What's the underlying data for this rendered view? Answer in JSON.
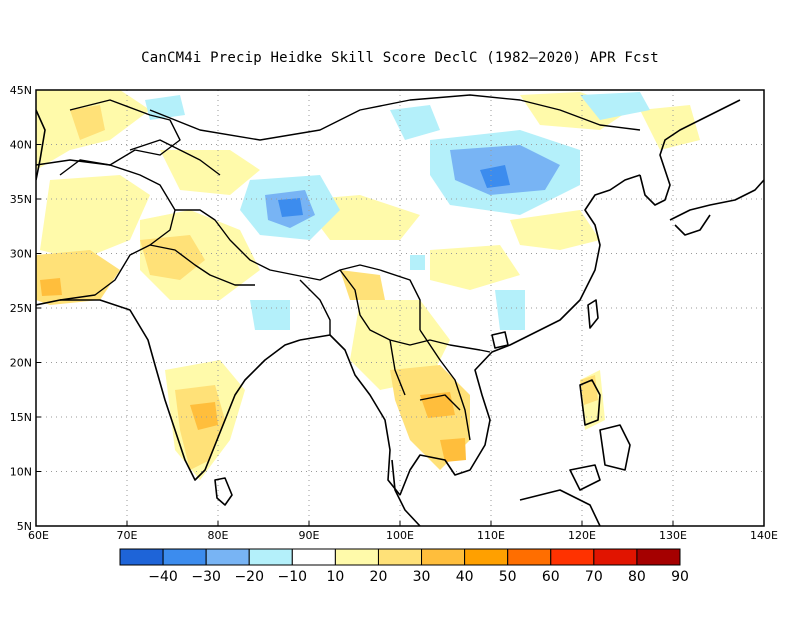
{
  "title": "CanCM4i Precip Heidke Skill Score DeclC (1982–2020) APR Fcst",
  "map": {
    "lon_range": [
      60,
      140
    ],
    "lat_range": [
      5,
      45
    ],
    "lon_ticks": [
      "60E",
      "70E",
      "80E",
      "90E",
      "100E",
      "110E",
      "120E",
      "130E",
      "140E"
    ],
    "lat_ticks": [
      "45N",
      "40N",
      "35N",
      "30N",
      "25N",
      "20N",
      "15N",
      "10N",
      "5N"
    ],
    "gridlines": "dotted",
    "colors": {
      "coast": "#000000",
      "grid": "#9a9a9a"
    }
  },
  "colorbar": {
    "colors": [
      "#1e64d8",
      "#3c8cee",
      "#78b4f4",
      "#b4f0fa",
      "#ffffff",
      "#fffaaa",
      "#ffe178",
      "#ffbe3c",
      "#ffa000",
      "#ff6e00",
      "#ff3200",
      "#e11400",
      "#a50000"
    ],
    "labels": [
      "−40",
      "−30",
      "−20",
      "−10",
      "10",
      "20",
      "30",
      "40",
      "50",
      "60",
      "70",
      "80",
      "90"
    ]
  },
  "shading": [
    {
      "level": "10-20",
      "color": "#fffaaa",
      "regions": [
        "Afghanistan/Pakistan",
        "Kazakhstan steppe",
        "Tibetan plateau patches",
        "Mongolia",
        "Philippines"
      ]
    },
    {
      "level": "20-30",
      "color": "#ffe178",
      "regions": [
        "Pakistan",
        "North India",
        "South India",
        "Myanmar",
        "Thailand",
        "Cambodia"
      ]
    },
    {
      "level": "30-40",
      "color": "#ffbe3c",
      "regions": [
        "South India",
        "Thailand",
        "Cambodia"
      ]
    },
    {
      "level": "-10 to -20",
      "color": "#b4f0fa",
      "regions": [
        "Qinghai / Gansu",
        "Western Tibet",
        "Mongolia"
      ]
    },
    {
      "level": "-20 to -30",
      "color": "#78b4f4",
      "regions": [
        "Western Tibet",
        "Qinghai"
      ]
    },
    {
      "level": "-30 to -40",
      "color": "#3c8cee",
      "regions": [
        "Qinghai center",
        "Western Tibet core"
      ]
    }
  ]
}
